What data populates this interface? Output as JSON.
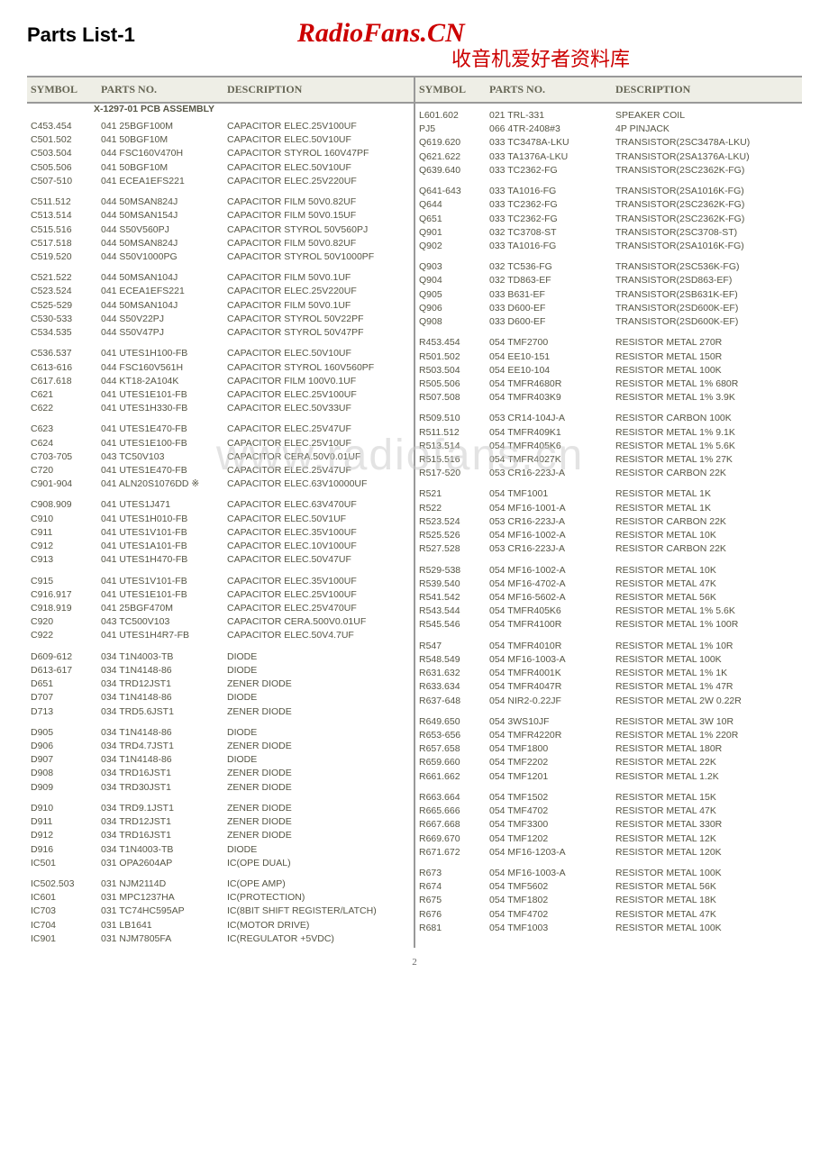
{
  "header": {
    "title": "Parts List-1",
    "brand": "RadioFans.CN",
    "subtitle": "收音机爱好者资料库"
  },
  "watermark": "www.radiofans.cn",
  "page_number": "2",
  "columns": {
    "symbol": "SYMBOL",
    "parts": "PARTS NO.",
    "desc": "DESCRIPTION"
  },
  "section_title": "X-1297-01 PCB ASSEMBLY",
  "left": [
    [
      [
        "C453.454",
        "041 25BGF100M",
        "CAPACITOR ELEC.25V100UF"
      ],
      [
        "C501.502",
        "041 50BGF10M",
        "CAPACITOR ELEC.50V10UF"
      ],
      [
        "C503.504",
        "044 FSC160V470H",
        "CAPACITOR STYROL 160V47PF"
      ],
      [
        "C505.506",
        "041 50BGF10M",
        "CAPACITOR ELEC.50V10UF"
      ],
      [
        "C507-510",
        "041 ECEA1EFS221",
        "CAPACITOR ELEC.25V220UF"
      ]
    ],
    [
      [
        "C511.512",
        "044 50MSAN824J",
        "CAPACITOR FILM 50V0.82UF"
      ],
      [
        "C513.514",
        "044 50MSAN154J",
        "CAPACITOR FILM 50V0.15UF"
      ],
      [
        "C515.516",
        "044 S50V560PJ",
        "CAPACITOR STYROL 50V560PJ"
      ],
      [
        "C517.518",
        "044 50MSAN824J",
        "CAPACITOR FILM 50V0.82UF"
      ],
      [
        "C519.520",
        "044 S50V1000PG",
        "CAPACITOR STYROL 50V1000PF"
      ]
    ],
    [
      [
        "C521.522",
        "044 50MSAN104J",
        "CAPACITOR FILM 50V0.1UF"
      ],
      [
        "C523.524",
        "041 ECEA1EFS221",
        "CAPACITOR ELEC.25V220UF"
      ],
      [
        "C525-529",
        "044 50MSAN104J",
        "CAPACITOR FILM 50V0.1UF"
      ],
      [
        "C530-533",
        "044 S50V22PJ",
        "CAPACITOR STYROL 50V22PF"
      ],
      [
        "C534.535",
        "044 S50V47PJ",
        "CAPACITOR STYROL 50V47PF"
      ]
    ],
    [
      [
        "C536.537",
        "041 UTES1H100-FB",
        "CAPACITOR ELEC.50V10UF"
      ],
      [
        "C613-616",
        "044 FSC160V561H",
        "CAPACITOR STYROL 160V560PF"
      ],
      [
        "C617.618",
        "044 KT18-2A104K",
        "CAPACITOR FILM 100V0.1UF"
      ],
      [
        "C621",
        "041 UTES1E101-FB",
        "CAPACITOR ELEC.25V100UF"
      ],
      [
        "C622",
        "041 UTES1H330-FB",
        "CAPACITOR ELEC.50V33UF"
      ]
    ],
    [
      [
        "C623",
        "041 UTES1E470-FB",
        "CAPACITOR ELEC.25V47UF"
      ],
      [
        "C624",
        "041 UTES1E100-FB",
        "CAPACITOR ELEC.25V10UF"
      ],
      [
        "C703-705",
        "043 TC50V103",
        "CAPACITOR CERA.50V0.01UF"
      ],
      [
        "C720",
        "041 UTES1E470-FB",
        "CAPACITOR ELEC.25V47UF"
      ],
      [
        "C901-904",
        "041 ALN20S1076DD ※",
        "CAPACITOR ELEC.63V10000UF"
      ]
    ],
    [
      [
        "C908.909",
        "041 UTES1J471",
        "CAPACITOR ELEC.63V470UF"
      ],
      [
        "C910",
        "041 UTES1H010-FB",
        "CAPACITOR ELEC.50V1UF"
      ],
      [
        "C911",
        "041 UTES1V101-FB",
        "CAPACITOR ELEC.35V100UF"
      ],
      [
        "C912",
        "041 UTES1A101-FB",
        "CAPACITOR ELEC.10V100UF"
      ],
      [
        "C913",
        "041 UTES1H470-FB",
        "CAPACITOR ELEC.50V47UF"
      ]
    ],
    [
      [
        "C915",
        "041 UTES1V101-FB",
        "CAPACITOR ELEC.35V100UF"
      ],
      [
        "C916.917",
        "041 UTES1E101-FB",
        "CAPACITOR ELEC.25V100UF"
      ],
      [
        "C918.919",
        "041 25BGF470M",
        "CAPACITOR ELEC.25V470UF"
      ],
      [
        "C920",
        "043 TC500V103",
        "CAPACITOR CERA.500V0.01UF"
      ],
      [
        "C922",
        "041 UTES1H4R7-FB",
        "CAPACITOR ELEC.50V4.7UF"
      ]
    ],
    [
      [
        "D609-612",
        "034 T1N4003-TB",
        "DIODE"
      ],
      [
        "D613-617",
        "034 T1N4148-86",
        "DIODE"
      ],
      [
        "D651",
        "034 TRD12JST1",
        "ZENER DIODE"
      ],
      [
        "D707",
        "034 T1N4148-86",
        "DIODE"
      ],
      [
        "D713",
        "034 TRD5.6JST1",
        "ZENER DIODE"
      ]
    ],
    [
      [
        "D905",
        "034 T1N4148-86",
        "DIODE"
      ],
      [
        "D906",
        "034 TRD4.7JST1",
        "ZENER DIODE"
      ],
      [
        "D907",
        "034 T1N4148-86",
        "DIODE"
      ],
      [
        "D908",
        "034 TRD16JST1",
        "ZENER DIODE"
      ],
      [
        "D909",
        "034 TRD30JST1",
        "ZENER DIODE"
      ]
    ],
    [
      [
        "D910",
        "034 TRD9.1JST1",
        "ZENER DIODE"
      ],
      [
        "D911",
        "034 TRD12JST1",
        "ZENER DIODE"
      ],
      [
        "D912",
        "034 TRD16JST1",
        "ZENER DIODE"
      ],
      [
        "D916",
        "034 T1N4003-TB",
        "DIODE"
      ],
      [
        "IC501",
        "031 OPA2604AP",
        "IC(OPE DUAL)"
      ]
    ],
    [
      [
        "IC502.503",
        "031 NJM2114D",
        "IC(OPE AMP)"
      ],
      [
        "IC601",
        "031 MPC1237HA",
        "IC(PROTECTION)"
      ],
      [
        "IC703",
        "031 TC74HC595AP",
        "IC(8BIT SHIFT REGISTER/LATCH)"
      ],
      [
        "IC704",
        "031 LB1641",
        "IC(MOTOR DRIVE)"
      ],
      [
        "IC901",
        "031 NJM7805FA",
        "IC(REGULATOR +5VDC)"
      ]
    ]
  ],
  "right": [
    [
      [
        "L601.602",
        "021 TRL-331",
        "SPEAKER COIL"
      ],
      [
        "PJ5",
        "066 4TR-2408#3",
        "4P PINJACK"
      ],
      [
        "Q619.620",
        "033 TC3478A-LKU",
        "TRANSISTOR(2SC3478A-LKU)"
      ],
      [
        "Q621.622",
        "033 TA1376A-LKU",
        "TRANSISTOR(2SA1376A-LKU)"
      ],
      [
        "Q639.640",
        "033 TC2362-FG",
        "TRANSISTOR(2SC2362K-FG)"
      ]
    ],
    [
      [
        "Q641-643",
        "033 TA1016-FG",
        "TRANSISTOR(2SA1016K-FG)"
      ],
      [
        "Q644",
        "033 TC2362-FG",
        "TRANSISTOR(2SC2362K-FG)"
      ],
      [
        "Q651",
        "033 TC2362-FG",
        "TRANSISTOR(2SC2362K-FG)"
      ],
      [
        "Q901",
        "032 TC3708-ST",
        "TRANSISTOR(2SC3708-ST)"
      ],
      [
        "Q902",
        "033 TA1016-FG",
        "TRANSISTOR(2SA1016K-FG)"
      ]
    ],
    [
      [
        "Q903",
        "032 TC536-FG",
        "TRANSISTOR(2SC536K-FG)"
      ],
      [
        "Q904",
        "032 TD863-EF",
        "TRANSISTOR(2SD863-EF)"
      ],
      [
        "Q905",
        "033 B631-EF",
        "TRANSISTOR(2SB631K-EF)"
      ],
      [
        "Q906",
        "033 D600-EF",
        "TRANSISTOR(2SD600K-EF)"
      ],
      [
        "Q908",
        "033 D600-EF",
        "TRANSISTOR(2SD600K-EF)"
      ]
    ],
    [
      [
        "R453.454",
        "054 TMF2700",
        "RESISTOR METAL 270R"
      ],
      [
        "R501.502",
        "054 EE10-151",
        "RESISTOR METAL 150R"
      ],
      [
        "R503.504",
        "054 EE10-104",
        "RESISTOR METAL 100K"
      ],
      [
        "R505.506",
        "054 TMFR4680R",
        "RESISTOR METAL 1% 680R"
      ],
      [
        "R507.508",
        "054 TMFR403K9",
        "RESISTOR METAL 1% 3.9K"
      ]
    ],
    [
      [
        "R509.510",
        "053 CR14-104J-A",
        "RESISTOR CARBON 100K"
      ],
      [
        "R511.512",
        "054 TMFR409K1",
        "RESISTOR METAL 1% 9.1K"
      ],
      [
        "R513.514",
        "054 TMFR405K6",
        "RESISTOR METAL 1% 5.6K"
      ],
      [
        "R515.516",
        "054 TMFR4027K",
        "RESISTOR METAL 1% 27K"
      ],
      [
        "R517-520",
        "053 CR16-223J-A",
        "RESISTOR CARBON 22K"
      ]
    ],
    [
      [
        "R521",
        "054 TMF1001",
        "RESISTOR METAL 1K"
      ],
      [
        "R522",
        "054 MF16-1001-A",
        "RESISTOR METAL 1K"
      ],
      [
        "R523.524",
        "053 CR16-223J-A",
        "RESISTOR CARBON 22K"
      ],
      [
        "R525.526",
        "054 MF16-1002-A",
        "RESISTOR METAL 10K"
      ],
      [
        "R527.528",
        "053 CR16-223J-A",
        "RESISTOR CARBON 22K"
      ]
    ],
    [
      [
        "R529-538",
        "054 MF16-1002-A",
        "RESISTOR METAL 10K"
      ],
      [
        "R539.540",
        "054 MF16-4702-A",
        "RESISTOR METAL 47K"
      ],
      [
        "R541.542",
        "054 MF16-5602-A",
        "RESISTOR METAL 56K"
      ],
      [
        "R543.544",
        "054 TMFR405K6",
        "RESISTOR METAL 1% 5.6K"
      ],
      [
        "R545.546",
        "054 TMFR4100R",
        "RESISTOR METAL 1% 100R"
      ]
    ],
    [
      [
        "R547",
        "054 TMFR4010R",
        "RESISTOR METAL 1% 10R"
      ],
      [
        "R548.549",
        "054 MF16-1003-A",
        "RESISTOR METAL 100K"
      ],
      [
        "R631.632",
        "054 TMFR4001K",
        "RESISTOR METAL 1% 1K"
      ],
      [
        "R633.634",
        "054 TMFR4047R",
        "RESISTOR METAL 1% 47R"
      ],
      [
        "R637-648",
        "054 NIR2-0.22JF",
        "RESISTOR METAL 2W 0.22R"
      ]
    ],
    [
      [
        "R649.650",
        "054 3WS10JF",
        "RESISTOR METAL 3W 10R"
      ],
      [
        "R653-656",
        "054 TMFR4220R",
        "RESISTOR METAL 1% 220R"
      ],
      [
        "R657.658",
        "054 TMF1800",
        "RESISTOR METAL 180R"
      ],
      [
        "R659.660",
        "054 TMF2202",
        "RESISTOR METAL 22K"
      ],
      [
        "R661.662",
        "054 TMF1201",
        "RESISTOR METAL 1.2K"
      ]
    ],
    [
      [
        "R663.664",
        "054 TMF1502",
        "RESISTOR METAL 15K"
      ],
      [
        "R665.666",
        "054 TMF4702",
        "RESISTOR METAL 47K"
      ],
      [
        "R667.668",
        "054 TMF3300",
        "RESISTOR METAL 330R"
      ],
      [
        "R669.670",
        "054 TMF1202",
        "RESISTOR METAL 12K"
      ],
      [
        "R671.672",
        "054 MF16-1203-A",
        "RESISTOR METAL 120K"
      ]
    ],
    [
      [
        "R673",
        "054 MF16-1003-A",
        "RESISTOR METAL 100K"
      ],
      [
        "R674",
        "054 TMF5602",
        "RESISTOR METAL 56K"
      ],
      [
        "R675",
        "054 TMF1802",
        "RESISTOR METAL 18K"
      ],
      [
        "R676",
        "054 TMF4702",
        "RESISTOR METAL 47K"
      ],
      [
        "R681",
        "054 TMF1003",
        "RESISTOR METAL 100K"
      ]
    ]
  ]
}
